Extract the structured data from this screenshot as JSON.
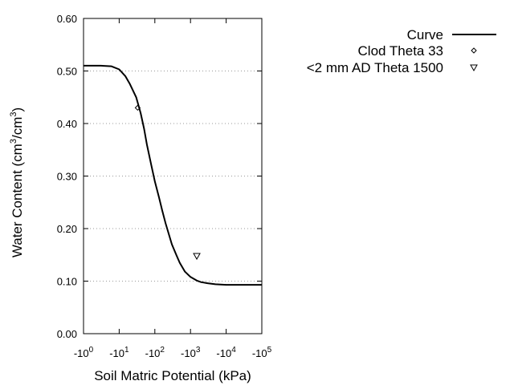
{
  "chart_data": {
    "type": "line",
    "xlabel": "Soil Matric Potential (kPa)",
    "ylabel": {
      "prefix": "Water Content (cm",
      "exp1": "3",
      "mid": "/cm",
      "exp2": "3",
      "suffix": ")"
    },
    "x_scale": "log",
    "xlim": [
      1,
      100000
    ],
    "ylim": [
      0,
      0.6
    ],
    "y_ticks": [
      0.0,
      0.1,
      0.2,
      0.3,
      0.4,
      0.5,
      0.6
    ],
    "y_tick_labels": [
      "0.00",
      "0.10",
      "0.20",
      "0.30",
      "0.40",
      "0.50",
      "0.60"
    ],
    "x_ticks": [
      {
        "value": 1,
        "base": "-10",
        "exp": "0"
      },
      {
        "value": 10,
        "base": "-10",
        "exp": "1"
      },
      {
        "value": 100,
        "base": "-10",
        "exp": "2"
      },
      {
        "value": 1000,
        "base": "-10",
        "exp": "3"
      },
      {
        "value": 10000,
        "base": "-10",
        "exp": "4"
      },
      {
        "value": 100000,
        "base": "-10",
        "exp": "5"
      }
    ],
    "grid": "horizontal dotted",
    "legend_placement": "top-right, outside plot",
    "series": [
      {
        "name": "Curve",
        "kind": "line",
        "color": "#000000",
        "x": [
          1,
          3,
          6,
          10,
          15,
          20,
          30,
          40,
          50,
          60,
          80,
          100,
          130,
          160,
          200,
          300,
          400,
          500,
          700,
          1000,
          1500,
          2000,
          3000,
          5000,
          10000,
          30000,
          100000
        ],
        "y": [
          0.51,
          0.51,
          0.509,
          0.503,
          0.49,
          0.475,
          0.45,
          0.42,
          0.39,
          0.36,
          0.32,
          0.29,
          0.26,
          0.235,
          0.21,
          0.17,
          0.15,
          0.135,
          0.118,
          0.108,
          0.101,
          0.098,
          0.096,
          0.094,
          0.093,
          0.093,
          0.093
        ]
      },
      {
        "name": "Clod Theta 33",
        "kind": "scatter",
        "marker": "diamond",
        "x": [
          33
        ],
        "y": [
          0.43
        ]
      },
      {
        "name": "<2 mm AD Theta 1500",
        "kind": "scatter",
        "marker": "triangle-down",
        "x": [
          1500
        ],
        "y": [
          0.148
        ]
      }
    ]
  }
}
